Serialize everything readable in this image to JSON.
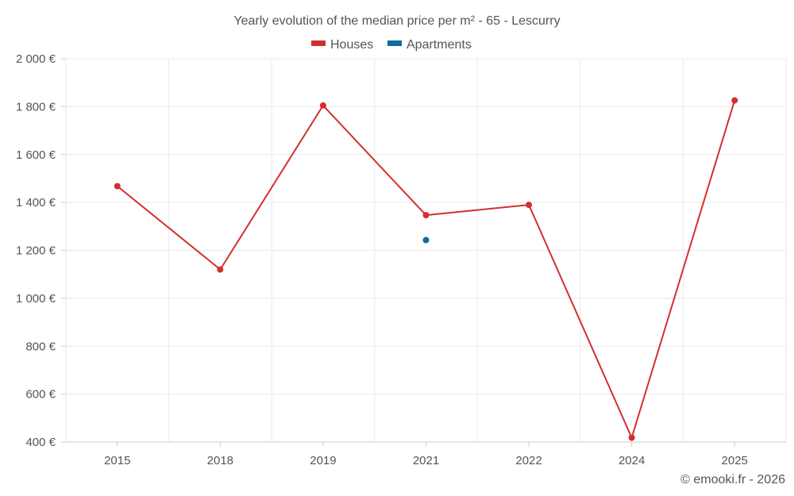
{
  "chart_data": {
    "type": "line",
    "title": "Yearly evolution of the median price per m² - 65 - Lescurry",
    "categories": [
      "2015",
      "2018",
      "2019",
      "2021",
      "2022",
      "2024",
      "2025"
    ],
    "series": [
      {
        "name": "Houses",
        "color": "#d32f2f",
        "values": [
          1468,
          1120,
          1805,
          1347,
          1390,
          418,
          1826
        ]
      },
      {
        "name": "Apartments",
        "color": "#0d6b9e",
        "values": [
          null,
          null,
          null,
          1243,
          null,
          null,
          null
        ]
      }
    ],
    "ylim": [
      400,
      2000
    ],
    "yticks": [
      400,
      600,
      800,
      1000,
      1200,
      1400,
      1600,
      1800,
      2000
    ],
    "ytick_labels": [
      "400 €",
      "600 €",
      "800 €",
      "1 000 €",
      "1 200 €",
      "1 400 €",
      "1 600 €",
      "1 800 €",
      "2 000 €"
    ],
    "xlabel": "",
    "ylabel": "",
    "legend_position": "top-center",
    "grid": true
  },
  "credit": "© emooki.fr - 2026"
}
